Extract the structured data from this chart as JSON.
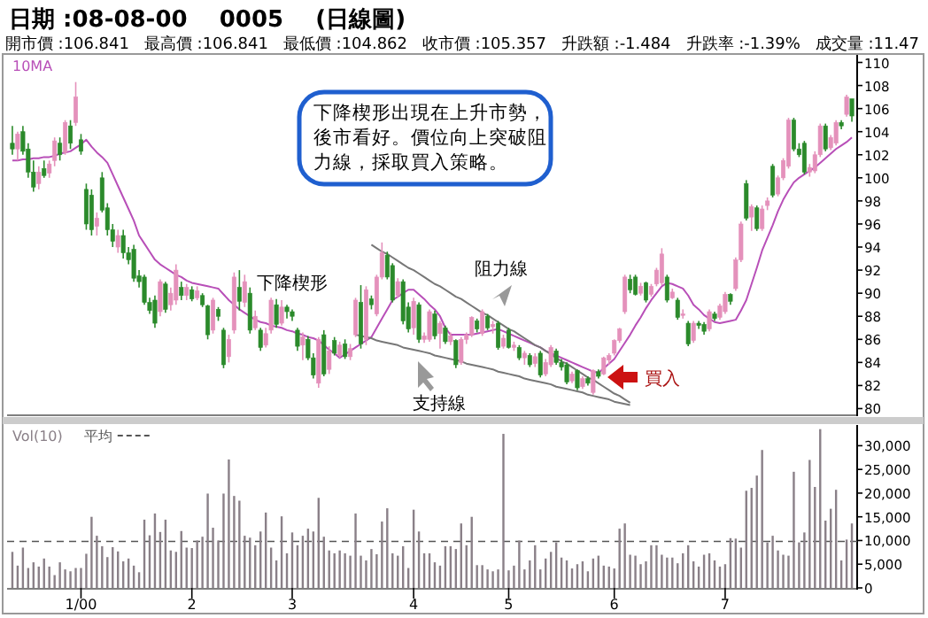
{
  "chart_data": [
    {
      "type": "candlestick",
      "title": "日期 :08-08-00    0005    (日線圖)",
      "subtitle": "開市價 :106.841   最高價 :106.841   最低價 :104.862   收市價 :105.357   升跌額 :-1.484   升跌率 :-1.39%   成交量 :11.47",
      "categories": [
        null,
        null,
        null,
        null,
        null,
        null,
        null,
        null,
        null,
        null,
        null,
        null,
        null,
        null,
        null,
        null,
        null,
        null,
        null,
        null,
        null,
        null,
        null,
        null,
        null,
        null,
        null,
        null,
        null,
        null,
        null,
        null,
        null,
        null,
        null,
        null,
        null,
        null,
        null,
        null,
        null,
        null,
        null,
        null,
        null,
        null,
        null,
        null,
        null,
        null,
        null,
        null,
        null,
        null,
        null,
        null,
        null,
        null,
        null,
        null,
        null,
        null,
        null,
        null,
        null,
        null,
        null,
        null,
        null,
        null,
        null,
        null,
        null,
        null,
        null,
        null,
        null,
        null,
        null,
        null,
        null,
        null,
        null,
        null,
        null,
        null,
        null,
        null,
        null,
        null,
        null,
        null,
        null,
        null,
        null,
        null,
        null,
        null,
        null,
        null,
        null,
        null,
        null,
        null,
        null,
        null,
        null,
        null,
        null,
        null,
        null,
        null,
        null,
        null,
        null,
        null,
        null,
        null,
        null,
        null,
        null,
        null,
        null,
        null,
        null,
        null,
        null,
        null,
        null,
        null,
        null,
        null,
        null,
        null,
        null,
        null,
        null,
        null,
        null,
        null,
        null,
        null,
        null,
        null,
        null,
        null,
        null,
        null,
        null,
        null,
        null,
        null,
        null,
        null,
        null,
        null,
        null,
        null,
        null,
        null
      ],
      "ohlc": [
        [
          103,
          104.5,
          102,
          102.5
        ],
        [
          102.5,
          104,
          101.5,
          103.8
        ],
        [
          104,
          104.5,
          102,
          102.3
        ],
        [
          102.5,
          103,
          100,
          100.5
        ],
        [
          100.5,
          101.5,
          98.8,
          99.2
        ],
        [
          99.5,
          101,
          99,
          100.5
        ],
        [
          100.8,
          101.5,
          100,
          100.2
        ],
        [
          100.4,
          101.5,
          100,
          101.2
        ],
        [
          101.5,
          103.5,
          101,
          103.2
        ],
        [
          103,
          103.5,
          101.5,
          102
        ],
        [
          102.2,
          105,
          102,
          104.8
        ],
        [
          104.5,
          105,
          102.5,
          103
        ],
        [
          104.8,
          108.3,
          104.5,
          107
        ],
        [
          103.3,
          103.8,
          102,
          102.3
        ],
        [
          99,
          99.5,
          95.5,
          96
        ],
        [
          98.5,
          99,
          95,
          95.5
        ],
        [
          95.8,
          97,
          95,
          96.5
        ],
        [
          100,
          100.5,
          97,
          97.2
        ],
        [
          97.4,
          97.8,
          95,
          95.5
        ],
        [
          95.5,
          96,
          94,
          94.5
        ],
        [
          94,
          95.5,
          93.5,
          95
        ],
        [
          95,
          95.5,
          93,
          93.5
        ],
        [
          93.5,
          94,
          92.5,
          92.9
        ],
        [
          93.8,
          94.2,
          91,
          91.3
        ],
        [
          91.5,
          92,
          90.5,
          91
        ],
        [
          91.4,
          91.6,
          89,
          89.2
        ],
        [
          89.2,
          89.6,
          88.2,
          88.5
        ],
        [
          89.4,
          89.8,
          87,
          87.4
        ],
        [
          88.4,
          91.2,
          88,
          91
        ],
        [
          90.8,
          91,
          88.3,
          88.6
        ],
        [
          89,
          90.5,
          88.5,
          90
        ],
        [
          89.4,
          92.5,
          89,
          92
        ],
        [
          90.5,
          91,
          89.4,
          89.8
        ],
        [
          89.8,
          90.8,
          89.4,
          90.5
        ],
        [
          90.3,
          90.6,
          89.3,
          89.5
        ],
        [
          89.6,
          90.6,
          89.4,
          90.2
        ],
        [
          89.8,
          90,
          88.8,
          89
        ],
        [
          88.9,
          89,
          86,
          86.4
        ],
        [
          86.8,
          89.6,
          86.5,
          89.4
        ],
        [
          88.6,
          88.8,
          87.6,
          88
        ],
        [
          86.8,
          87,
          83.5,
          83.8
        ],
        [
          84.5,
          86.4,
          84,
          86
        ],
        [
          86.8,
          91.8,
          86.5,
          91.4
        ],
        [
          90.5,
          92,
          88.5,
          89.3
        ],
        [
          89.2,
          91.6,
          88.8,
          91
        ],
        [
          90,
          90.5,
          86.5,
          86.8
        ],
        [
          87,
          88.5,
          86.8,
          88
        ],
        [
          86.8,
          87,
          85,
          85.3
        ],
        [
          85.5,
          87,
          85.3,
          86.5
        ],
        [
          86.8,
          89.6,
          86.5,
          89.4
        ],
        [
          89,
          89.5,
          87,
          87.3
        ],
        [
          87.4,
          89.4,
          87.2,
          88.8
        ],
        [
          88.8,
          89,
          87.8,
          88.4
        ],
        [
          88.4,
          88.6,
          87.6,
          88
        ],
        [
          86.8,
          87,
          85,
          85.4
        ],
        [
          85.5,
          86.6,
          84.2,
          86.2
        ],
        [
          86,
          86.3,
          84.2,
          84.4
        ],
        [
          84.4,
          84.8,
          82.6,
          82.9
        ],
        [
          82.2,
          86.2,
          81.8,
          86
        ],
        [
          86.4,
          86.8,
          82.8,
          83
        ],
        [
          83.4,
          85.4,
          83,
          85
        ],
        [
          85.9,
          86.2,
          84.6,
          84.8
        ],
        [
          84.6,
          85.8,
          84.4,
          85.5
        ],
        [
          85.6,
          86,
          84.3,
          84.5
        ],
        [
          84.5,
          85.6,
          84.2,
          85.2
        ],
        [
          86.4,
          89.6,
          86.2,
          89.4
        ],
        [
          89.2,
          90.7,
          85.2,
          85.6
        ],
        [
          86,
          90.6,
          85.5,
          90.3
        ],
        [
          89.5,
          89.8,
          88.6,
          89
        ],
        [
          88.2,
          91.6,
          88,
          91.4
        ],
        [
          91.4,
          94.4,
          91.2,
          93.5
        ],
        [
          93.3,
          93.6,
          91.2,
          91.4
        ],
        [
          92.4,
          92.6,
          89.2,
          89.4
        ],
        [
          89.8,
          91.3,
          89.6,
          91
        ],
        [
          91,
          91.2,
          87.3,
          87.6
        ],
        [
          88.8,
          89.2,
          86.6,
          86.9
        ],
        [
          87,
          89.6,
          86.4,
          89.3
        ],
        [
          89,
          89.2,
          85.7,
          86
        ],
        [
          86,
          86.6,
          85.7,
          86.3
        ],
        [
          86,
          88.6,
          85.8,
          88.4
        ],
        [
          88.2,
          88.5,
          86,
          86.3
        ],
        [
          86.5,
          87.6,
          85.2,
          87.4
        ],
        [
          87,
          87.2,
          85.6,
          85.8
        ],
        [
          85.8,
          86.6,
          85.5,
          86.3
        ],
        [
          85.9,
          86,
          83.5,
          83.8
        ],
        [
          84,
          86.2,
          83.8,
          86
        ],
        [
          86,
          86.6,
          85.6,
          86.4
        ],
        [
          86.4,
          88,
          86.2,
          87.9
        ],
        [
          87.6,
          87.8,
          86.6,
          86.9
        ],
        [
          86.5,
          88.6,
          86.3,
          88.4
        ],
        [
          88,
          88.2,
          86.8,
          87
        ],
        [
          87.1,
          87.6,
          86.5,
          87.3
        ],
        [
          87.4,
          87.6,
          85.1,
          85.3
        ],
        [
          85.4,
          86.4,
          85.2,
          86.1
        ],
        [
          86.8,
          87,
          85.2,
          85.3
        ],
        [
          85.3,
          85.8,
          85,
          85.5
        ],
        [
          85.3,
          85.5,
          84.2,
          84.4
        ],
        [
          84.4,
          85,
          83.8,
          84.8
        ],
        [
          84.6,
          84.8,
          83.6,
          83.8
        ],
        [
          83.9,
          84.8,
          83.6,
          84.5
        ],
        [
          84.8,
          85,
          82.7,
          82.9
        ],
        [
          83,
          84.3,
          82.8,
          84
        ],
        [
          83.8,
          85.5,
          83.6,
          85.3
        ],
        [
          85,
          85.2,
          83.8,
          84
        ],
        [
          84,
          84.3,
          83.3,
          83.6
        ],
        [
          83.8,
          84,
          82.1,
          82.3
        ],
        [
          82.4,
          83.2,
          82.2,
          83
        ],
        [
          83.3,
          83.4,
          81.6,
          81.8
        ],
        [
          81.9,
          82.8,
          81.7,
          82.6
        ],
        [
          82.6,
          82.8,
          82,
          82.2
        ],
        [
          81.4,
          83.4,
          81.2,
          83.3
        ],
        [
          83.2,
          83.4,
          82.6,
          82.8
        ],
        [
          83,
          84.5,
          82.9,
          84.4
        ],
        [
          84.2,
          84.8,
          83.8,
          84.6
        ],
        [
          84.8,
          86,
          84.6,
          85.9
        ],
        [
          85.9,
          87,
          85.7,
          86.9
        ],
        [
          88.4,
          91.6,
          88.2,
          91.4
        ],
        [
          91.2,
          91.6,
          90,
          90.3
        ],
        [
          91.4,
          91.6,
          89.8,
          89.9
        ],
        [
          90,
          90.9,
          89.8,
          90.6
        ],
        [
          90.9,
          91,
          89.2,
          89.4
        ],
        [
          89.9,
          90.8,
          89.7,
          90.6
        ],
        [
          90.8,
          92.2,
          90.6,
          92
        ],
        [
          90.9,
          93.9,
          90.7,
          93.4
        ],
        [
          91.4,
          91.6,
          89.2,
          89.4
        ],
        [
          89.6,
          90.4,
          89.5,
          90.1
        ],
        [
          89.4,
          89.6,
          87.7,
          87.9
        ],
        [
          88.1,
          88.6,
          87.8,
          88.2
        ],
        [
          87.4,
          87.6,
          85.4,
          85.6
        ],
        [
          85.9,
          87.6,
          85.7,
          87.4
        ],
        [
          87.4,
          87.6,
          86.9,
          87.2
        ],
        [
          87.3,
          87.5,
          86.4,
          86.7
        ],
        [
          86.9,
          88.6,
          86.7,
          88.4
        ],
        [
          88.2,
          88.4,
          87.6,
          87.8
        ],
        [
          87.9,
          89.1,
          87.7,
          88.9
        ],
        [
          88.4,
          90.1,
          88.2,
          89.9
        ],
        [
          89.9,
          90,
          89,
          89.3
        ],
        [
          90.4,
          93.1,
          90.2,
          92.9
        ],
        [
          92.9,
          96.2,
          92.7,
          96
        ],
        [
          99.5,
          99.8,
          96.3,
          96.5
        ],
        [
          96.6,
          97.7,
          95.4,
          97.5
        ],
        [
          97.4,
          97.6,
          95.4,
          95.6
        ],
        [
          95.6,
          97.6,
          95.4,
          97.3
        ],
        [
          97.6,
          98.3,
          97.2,
          98
        ],
        [
          101,
          101.2,
          98.3,
          98.5
        ],
        [
          98.6,
          100.2,
          98.4,
          100
        ],
        [
          100,
          101.7,
          99.8,
          101.5
        ],
        [
          101,
          105.2,
          100.8,
          105
        ],
        [
          105,
          105.2,
          102.3,
          102.5
        ],
        [
          102.5,
          103,
          101.8,
          102
        ],
        [
          103,
          103.2,
          100.3,
          100.5
        ],
        [
          100.5,
          101.2,
          100.1,
          100.9
        ],
        [
          100.6,
          102.3,
          100.4,
          102
        ],
        [
          102,
          104.7,
          101.8,
          104.5
        ],
        [
          104.5,
          104.7,
          102.3,
          102.5
        ],
        [
          102.6,
          103.7,
          102.4,
          103.5
        ],
        [
          103,
          105,
          102.8,
          104.8
        ],
        [
          104.8,
          105,
          104.2,
          104.5
        ],
        [
          105.5,
          107.2,
          105.3,
          107
        ],
        [
          106.841,
          106.841,
          104.862,
          105.357
        ]
      ],
      "colors": [
        "#2b8a2b",
        "#e491bb",
        "#2b8a2b",
        "#2b8a2b",
        "#2b8a2b",
        "#e491bb",
        "#2b8a2b",
        "#e491bb",
        "#e491bb",
        "#2b8a2b",
        "#e491bb",
        "#2b8a2b",
        "#e491bb",
        "#2b8a2b",
        "#2b8a2b",
        "#2b8a2b",
        "#e491bb",
        "#2b8a2b",
        "#2b8a2b",
        "#2b8a2b",
        "#e491bb",
        "#2b8a2b",
        "#2b8a2b",
        "#2b8a2b",
        "#2b8a2b",
        "#2b8a2b",
        "#2b8a2b",
        "#2b8a2b",
        "#e491bb",
        "#2b8a2b",
        "#e491bb",
        "#e491bb",
        "#2b8a2b",
        "#e491bb",
        "#2b8a2b",
        "#e491bb",
        "#2b8a2b",
        "#2b8a2b",
        "#e491bb",
        "#2b8a2b",
        "#2b8a2b",
        "#e491bb",
        "#e491bb",
        "#2b8a2b",
        "#e491bb",
        "#2b8a2b",
        "#e491bb",
        "#2b8a2b",
        "#e491bb",
        "#e491bb",
        "#2b8a2b",
        "#e491bb",
        "#2b8a2b",
        "#2b8a2b",
        "#2b8a2b",
        "#e491bb",
        "#2b8a2b",
        "#2b8a2b",
        "#e491bb",
        "#2b8a2b",
        "#e491bb",
        "#2b8a2b",
        "#e491bb",
        "#2b8a2b",
        "#e491bb",
        "#e491bb",
        "#2b8a2b",
        "#e491bb",
        "#2b8a2b",
        "#e491bb",
        "#e491bb",
        "#2b8a2b",
        "#2b8a2b",
        "#e491bb",
        "#2b8a2b",
        "#2b8a2b",
        "#e491bb",
        "#2b8a2b",
        "#e491bb",
        "#e491bb",
        "#2b8a2b",
        "#e491bb",
        "#2b8a2b",
        "#e491bb",
        "#2b8a2b",
        "#e491bb",
        "#e491bb",
        "#e491bb",
        "#2b8a2b",
        "#e491bb",
        "#2b8a2b",
        "#e491bb",
        "#2b8a2b",
        "#e491bb",
        "#2b8a2b",
        "#e491bb",
        "#2b8a2b",
        "#e491bb",
        "#2b8a2b",
        "#e491bb",
        "#2b8a2b",
        "#e491bb",
        "#e491bb",
        "#2b8a2b",
        "#2b8a2b",
        "#2b8a2b",
        "#e491bb",
        "#2b8a2b",
        "#e491bb",
        "#2b8a2b",
        "#e491bb",
        "#2b8a2b",
        "#e491bb",
        "#e491bb",
        "#e491bb",
        "#e491bb",
        "#e491bb",
        "#2b8a2b",
        "#2b8a2b",
        "#e491bb",
        "#2b8a2b",
        "#e491bb",
        "#e491bb",
        "#e491bb",
        "#2b8a2b",
        "#e491bb",
        "#2b8a2b",
        "#e491bb",
        "#2b8a2b",
        "#e491bb",
        "#2b8a2b",
        "#2b8a2b",
        "#e491bb",
        "#2b8a2b",
        "#e491bb",
        "#e491bb",
        "#2b8a2b",
        "#e491bb",
        "#e491bb",
        "#2b8a2b",
        "#e491bb",
        "#2b8a2b",
        "#e491bb",
        "#e491bb",
        "#2b8a2b",
        "#e491bb",
        "#e491bb",
        "#e491bb",
        "#2b8a2b",
        "#2b8a2b",
        "#2b8a2b",
        "#e491bb",
        "#e491bb",
        "#e491bb",
        "#2b8a2b",
        "#e491bb",
        "#e491bb",
        "#2b8a2b",
        "#e491bb",
        "#2b8a2b"
      ],
      "series": [
        {
          "name": "10MA",
          "type": "line",
          "color": "#b84fb8",
          "values": [
            101.5,
            101.5,
            101.6,
            101.6,
            101.7,
            101.7,
            101.8,
            101.8,
            101.9,
            102.1,
            102.2,
            102.3,
            102.6,
            102.9,
            103.3,
            102.7,
            102.2,
            101.8,
            101.3,
            100.3,
            99.3,
            98.3,
            97.3,
            96.3,
            95.0,
            94.3,
            93.6,
            92.9,
            92.5,
            92.2,
            91.9,
            91.6,
            91.4,
            91.1,
            90.9,
            90.8,
            90.7,
            90.6,
            90.5,
            90.4,
            89.9,
            89.4,
            89.0,
            88.6,
            88.3,
            88.0,
            87.7,
            87.5,
            87.4,
            87.2,
            87.1,
            87.0,
            86.8,
            86.7,
            86.5,
            86.4,
            86.2,
            86.1,
            85.9,
            85.5,
            85.1,
            84.8,
            84.4,
            84.7,
            85.0,
            85.3,
            85.6,
            85.9,
            86.2,
            87.0,
            87.8,
            88.6,
            89.4,
            89.7,
            90.0,
            90.3,
            90.3,
            89.9,
            89.5,
            89.0,
            88.6,
            88.0,
            87.0,
            86.4,
            86.4,
            86.4,
            86.4,
            86.4,
            86.5,
            86.6,
            86.7,
            86.8,
            86.9,
            86.7,
            86.5,
            86.3,
            86.1,
            85.9,
            85.7,
            85.5,
            85.3,
            85.0,
            84.8,
            84.6,
            84.4,
            84.2,
            84.0,
            83.8,
            83.6,
            83.4,
            83.2,
            83.1,
            83.5,
            83.9,
            84.3,
            85.0,
            85.7,
            86.4,
            87.2,
            87.9,
            88.7,
            89.4,
            90.0,
            90.6,
            90.9,
            90.8,
            90.6,
            90.4,
            89.8,
            89.0,
            88.6,
            88.1,
            87.8,
            87.5,
            87.4,
            87.5,
            87.6,
            87.7,
            88.5,
            89.4,
            90.8,
            92.2,
            93.7,
            94.8,
            95.9,
            97.1,
            98.1,
            98.9,
            99.6,
            100.0,
            100.3,
            100.6,
            100.9,
            101.3,
            101.7,
            102.1,
            102.5,
            102.8,
            103.1,
            103.5
          ]
        },
        {
          "type": "line",
          "color": "#777777",
          "values": [
            null,
            null,
            null,
            null,
            null,
            null,
            null,
            null,
            null,
            null,
            null,
            null,
            null,
            null,
            null,
            null,
            null,
            null,
            null,
            null,
            null,
            null,
            null,
            null,
            null,
            null,
            null,
            null,
            null,
            null,
            null,
            null,
            null,
            null,
            null,
            null,
            null,
            null,
            null,
            null,
            null,
            null,
            null,
            null,
            null,
            null,
            null,
            null,
            null,
            null,
            null,
            null,
            null,
            null,
            null,
            null,
            null,
            null,
            null,
            null,
            null,
            null,
            null,
            null,
            null,
            null,
            null,
            null,
            94.2,
            93.9,
            93.6,
            93.4,
            93.1,
            92.8,
            92.5,
            92.2,
            92.0,
            91.7,
            91.4,
            91.1,
            90.8,
            90.6,
            90.3,
            90.0,
            89.7,
            89.5,
            89.2,
            88.9,
            88.6,
            88.3,
            88.1,
            87.8,
            87.5,
            87.2,
            86.9,
            86.7,
            86.4,
            86.1,
            85.8,
            85.5,
            85.3,
            85.0,
            84.7,
            84.4,
            84.1,
            83.9,
            83.6,
            83.3,
            83.0,
            82.7,
            82.5,
            82.2,
            81.9,
            81.6,
            81.3,
            81.1,
            80.8,
            80.5,
            null,
            null,
            null,
            null,
            null,
            null,
            null,
            null,
            null,
            null,
            null,
            null,
            null,
            null,
            null,
            null,
            null,
            null,
            null,
            null,
            null,
            null,
            null,
            null,
            null,
            null,
            null,
            null,
            null,
            null,
            null,
            null,
            null,
            null,
            null,
            null,
            null,
            null,
            null,
            null,
            null,
            null
          ]
        },
        {
          "type": "line",
          "color": "#777777",
          "values": [
            null,
            null,
            null,
            null,
            null,
            null,
            null,
            null,
            null,
            null,
            null,
            null,
            null,
            null,
            null,
            null,
            null,
            null,
            null,
            null,
            null,
            null,
            null,
            null,
            null,
            null,
            null,
            null,
            null,
            null,
            null,
            null,
            null,
            null,
            null,
            null,
            null,
            null,
            null,
            null,
            null,
            null,
            null,
            null,
            null,
            null,
            null,
            null,
            null,
            null,
            null,
            null,
            null,
            null,
            null,
            null,
            null,
            null,
            null,
            null,
            null,
            null,
            null,
            null,
            null,
            86.4,
            86.3,
            86.2,
            86.1,
            85.9,
            85.8,
            85.7,
            85.6,
            85.5,
            85.3,
            85.2,
            85.1,
            85.0,
            84.9,
            84.8,
            84.6,
            84.5,
            84.4,
            84.3,
            84.2,
            84.1,
            83.9,
            83.8,
            83.7,
            83.6,
            83.5,
            83.4,
            83.2,
            83.1,
            83.0,
            82.9,
            82.8,
            82.6,
            82.5,
            82.4,
            82.3,
            82.2,
            82.1,
            81.9,
            81.8,
            81.7,
            81.6,
            81.5,
            81.4,
            81.2,
            81.1,
            81.0,
            80.9,
            80.8,
            80.6,
            80.5,
            80.4,
            80.3,
            null,
            null,
            null,
            null,
            null,
            null,
            null,
            null,
            null,
            null,
            null,
            null,
            null,
            null,
            null,
            null,
            null,
            null,
            null,
            null,
            null,
            null,
            null,
            null,
            null,
            null,
            null,
            null,
            null,
            null,
            null,
            null,
            null,
            null,
            null,
            null,
            null,
            null,
            null,
            null,
            null,
            null
          ]
        }
      ],
      "annotations": [
        "下降楔形出現在上升市勢，後市看好。價位向上突破阻力線，採取買入策略。",
        "下降楔形",
        "阻力線",
        "支持線",
        "買入"
      ],
      "ylim": [
        79.5,
        110.5
      ],
      "yticks": [
        80,
        82,
        84,
        86,
        88,
        90,
        92,
        94,
        96,
        98,
        100,
        102,
        104,
        106,
        108,
        110
      ],
      "tick_labels": "y",
      "legend": "top left"
    },
    {
      "type": "bar",
      "categories": [
        null,
        null,
        null,
        null,
        null,
        null,
        null,
        null,
        null,
        null,
        null,
        null,
        null,
        "1/00",
        null,
        null,
        null,
        null,
        null,
        null,
        null,
        null,
        null,
        null,
        null,
        null,
        null,
        null,
        null,
        null,
        null,
        null,
        null,
        null,
        "2",
        null,
        null,
        null,
        null,
        null,
        null,
        null,
        null,
        null,
        null,
        null,
        null,
        null,
        null,
        null,
        null,
        null,
        null,
        "3",
        null,
        null,
        null,
        null,
        null,
        null,
        null,
        null,
        null,
        null,
        null,
        null,
        null,
        null,
        null,
        null,
        null,
        null,
        null,
        null,
        null,
        null,
        "4",
        null,
        null,
        null,
        null,
        null,
        null,
        null,
        null,
        null,
        null,
        null,
        null,
        null,
        null,
        null,
        null,
        null,
        "5",
        null,
        null,
        null,
        null,
        null,
        null,
        null,
        null,
        null,
        null,
        null,
        null,
        null,
        null,
        null,
        null,
        null,
        null,
        null,
        "6",
        null,
        null,
        null,
        null,
        null,
        null,
        null,
        null,
        null,
        null,
        null,
        null,
        null,
        null,
        null,
        null,
        null,
        null,
        null,
        null,
        "7",
        null,
        null,
        null,
        null,
        null,
        null,
        null,
        null,
        null,
        null,
        null,
        null,
        null,
        null,
        null,
        null,
        null,
        null,
        null,
        null,
        null,
        null,
        null,
        null
      ],
      "series": [
        {
          "name": "Vol(10)",
          "color": "#8a8088",
          "values": [
            7600,
            4700,
            8500,
            4200,
            5400,
            4500,
            6200,
            4500,
            2700,
            5400,
            3900,
            3500,
            4200,
            4200,
            7200,
            15000,
            11000,
            8800,
            6500,
            8600,
            7700,
            5600,
            6200,
            4700,
            3300,
            14400,
            11100,
            15700,
            11800,
            14400,
            7900,
            7600,
            12000,
            8500,
            8400,
            10000,
            10800,
            19900,
            12700,
            10000,
            19900,
            27100,
            19400,
            18400,
            11000,
            10600,
            9000,
            11900,
            15900,
            8500,
            5800,
            15100,
            7300,
            11700,
            9000,
            11000,
            12500,
            11900,
            19000,
            10800,
            7900,
            7300,
            7900,
            7300,
            6800,
            15700,
            6800,
            5800,
            8200,
            7100,
            14000,
            16800,
            7300,
            6800,
            8800,
            4200,
            16500,
            11900,
            7300,
            7300,
            5400,
            4700,
            8800,
            8800,
            8200,
            13600,
            9000,
            15000,
            4800,
            4800,
            3900,
            3500,
            3900,
            32500,
            3700,
            4700,
            10000,
            3900,
            5800,
            9000,
            3900,
            6200,
            7600,
            9600,
            6400,
            5800,
            4100,
            5000,
            5600,
            3500,
            6200,
            6800,
            4700,
            4500,
            4100,
            12500,
            13600,
            7000,
            6800,
            5000,
            5600,
            9000,
            9000,
            7000,
            6400,
            6400,
            5200,
            7300,
            9000,
            5600,
            4500,
            7000,
            7300,
            5800,
            4500,
            5000,
            10500,
            10400,
            8500,
            20500,
            21100,
            23700,
            29100,
            9600,
            11000,
            7900,
            7000,
            6800,
            24500,
            9600,
            11700,
            27000,
            21300,
            33500,
            14200,
            16700,
            20700,
            5800,
            10200,
            13600
          ]
        }
      ],
      "ref_lines": [
        {
          "axis": "y",
          "value": 9800,
          "label": "平均",
          "color": "#555555",
          "line_style": "dashed"
        }
      ],
      "ylim": [
        0,
        34000
      ],
      "yticks": [
        0,
        {
          "value": 5000,
          "label": "5,000"
        },
        {
          "value": 10000,
          "label": "10,000"
        },
        {
          "value": 15000,
          "label": "15,000"
        },
        {
          "value": 20000,
          "label": "20,000"
        },
        {
          "value": 25000,
          "label": "25,000"
        },
        {
          "value": 30000,
          "label": "30,000"
        }
      ],
      "legend": "top left"
    }
  ]
}
